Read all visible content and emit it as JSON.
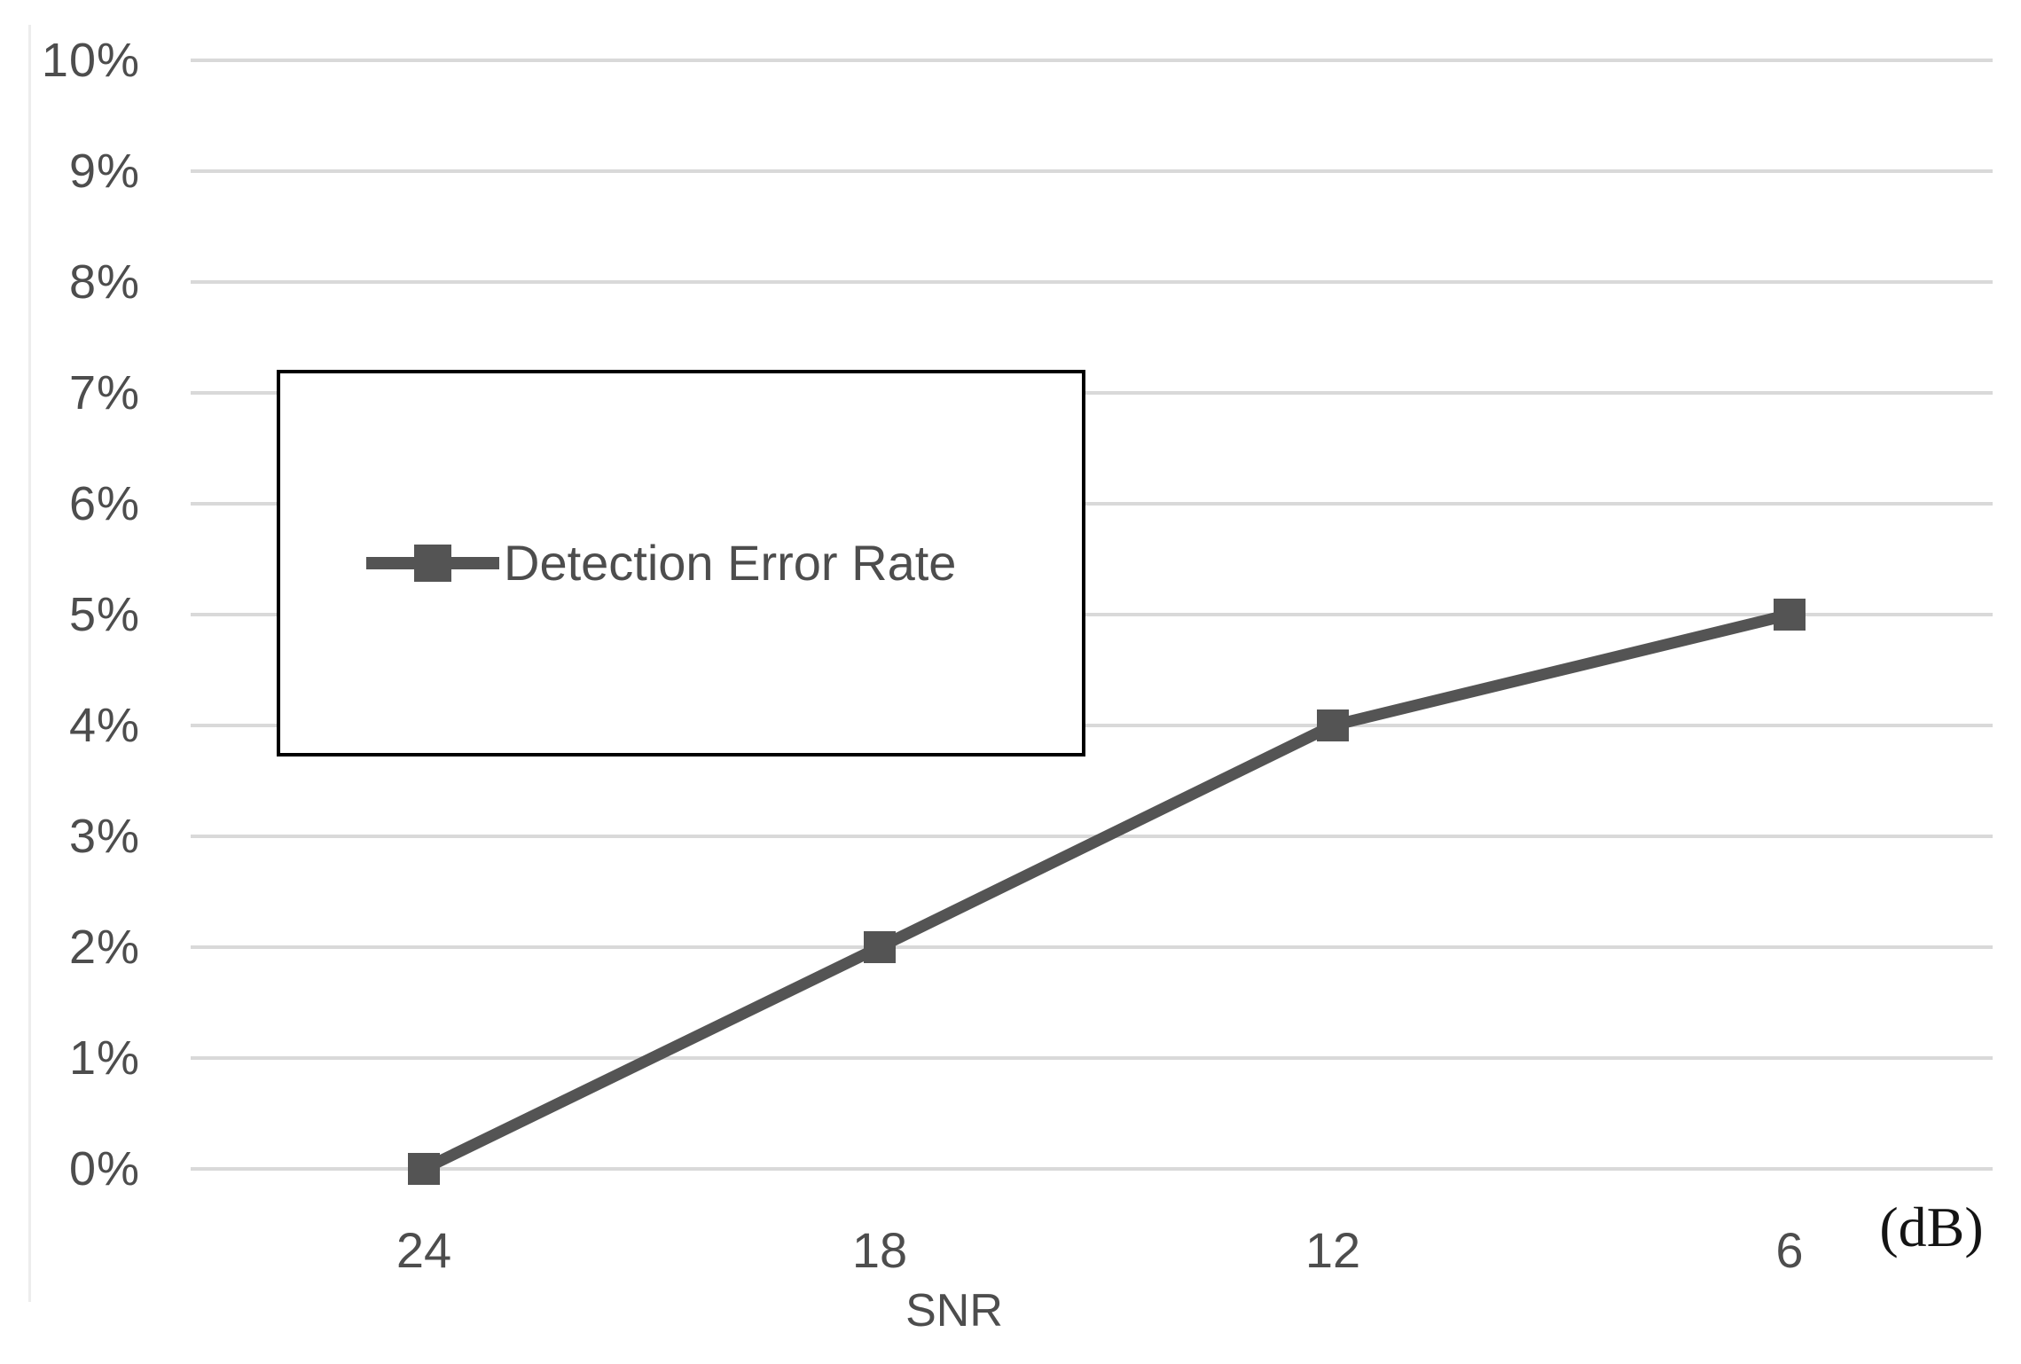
{
  "chart_data": {
    "type": "line",
    "title": "",
    "categories": [
      "24",
      "18",
      "12",
      "6"
    ],
    "series": [
      {
        "name": "Detection Error Rate",
        "values": [
          0,
          2,
          4,
          5
        ]
      }
    ],
    "xlabel": "SNR",
    "x_unit": "(dB)",
    "ylabel": "",
    "y_ticks": [
      "10%",
      "9%",
      "8%",
      "7%",
      "6%",
      "5%",
      "4%",
      "3%",
      "2%",
      "1%",
      "0%"
    ],
    "ylim": [
      0,
      10
    ],
    "y_unit": "percent",
    "grid": "horizontal",
    "legend_position": "inside-upper-left",
    "legend_border": true,
    "marker": "square",
    "colors": {
      "series": "#545454",
      "gridline": "#d9d9d9",
      "axis_text": "#4d4d4d",
      "legend_border": "#000000",
      "unit_text": "#141414",
      "background": "#ffffff"
    }
  }
}
